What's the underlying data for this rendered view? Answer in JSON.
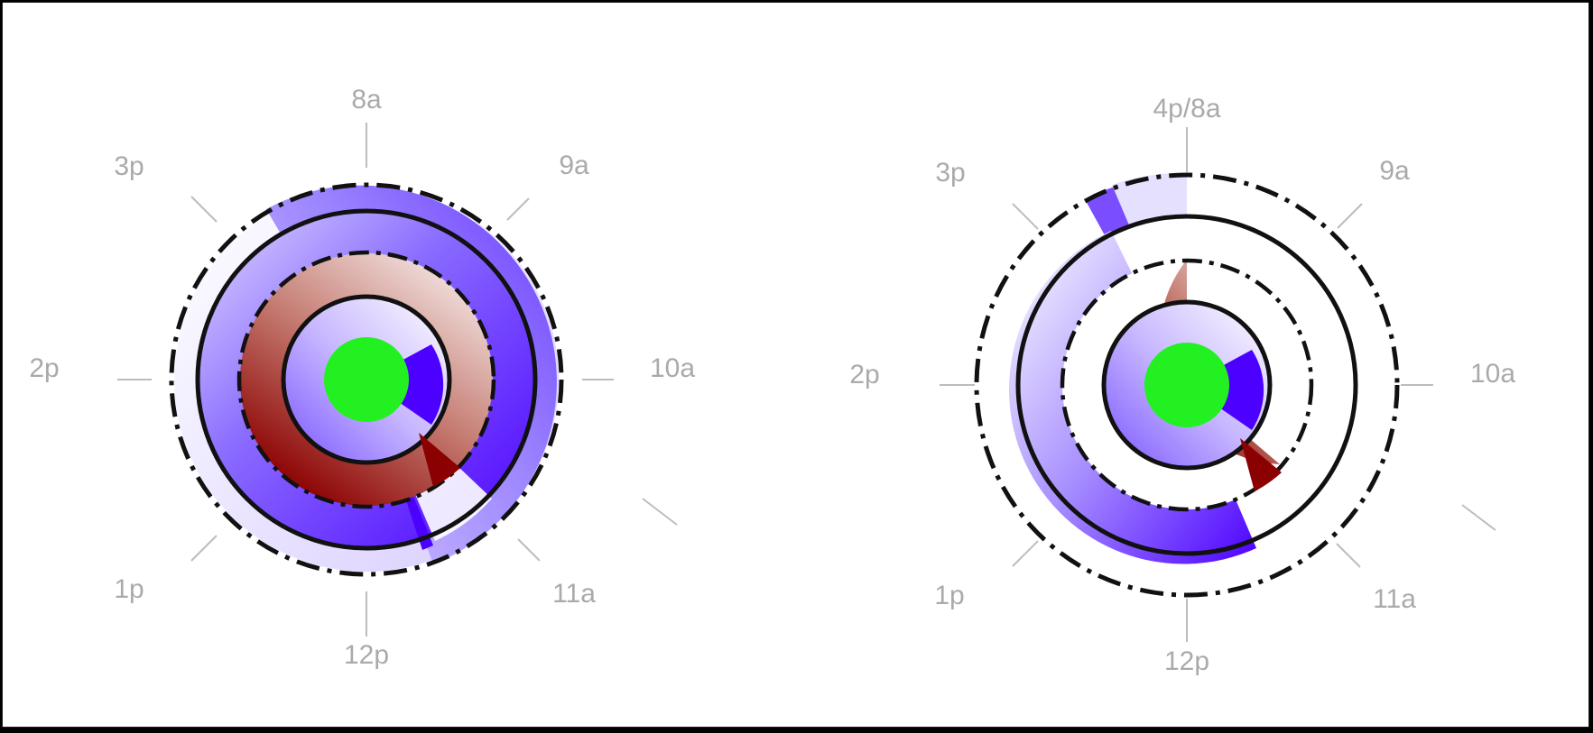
{
  "colors": {
    "blue": "#4c00ff",
    "light_blue": "#c8b8ff",
    "dark_red": "#8b0000",
    "light_red": "#f3dcd8",
    "green": "#22f020",
    "label_gray": "#aaaaaa",
    "tick_gray": "#bdbdbd"
  },
  "clocks": [
    {
      "labels": {
        "top": "8a",
        "top_right": "9a",
        "right": "10a",
        "bottom_right": "11a",
        "bottom": "12p",
        "bottom_left": "1p",
        "left": "2p",
        "top_left": "3p"
      },
      "outer_ring": "full",
      "red_ring": "full"
    },
    {
      "labels": {
        "top": "4p/8a",
        "top_right": "9a",
        "right": "10a",
        "bottom_right": "11a",
        "bottom": "12p",
        "bottom_left": "1p",
        "left": "2p",
        "top_left": "3p"
      },
      "outer_ring": "partial",
      "red_ring": "partial"
    }
  ]
}
